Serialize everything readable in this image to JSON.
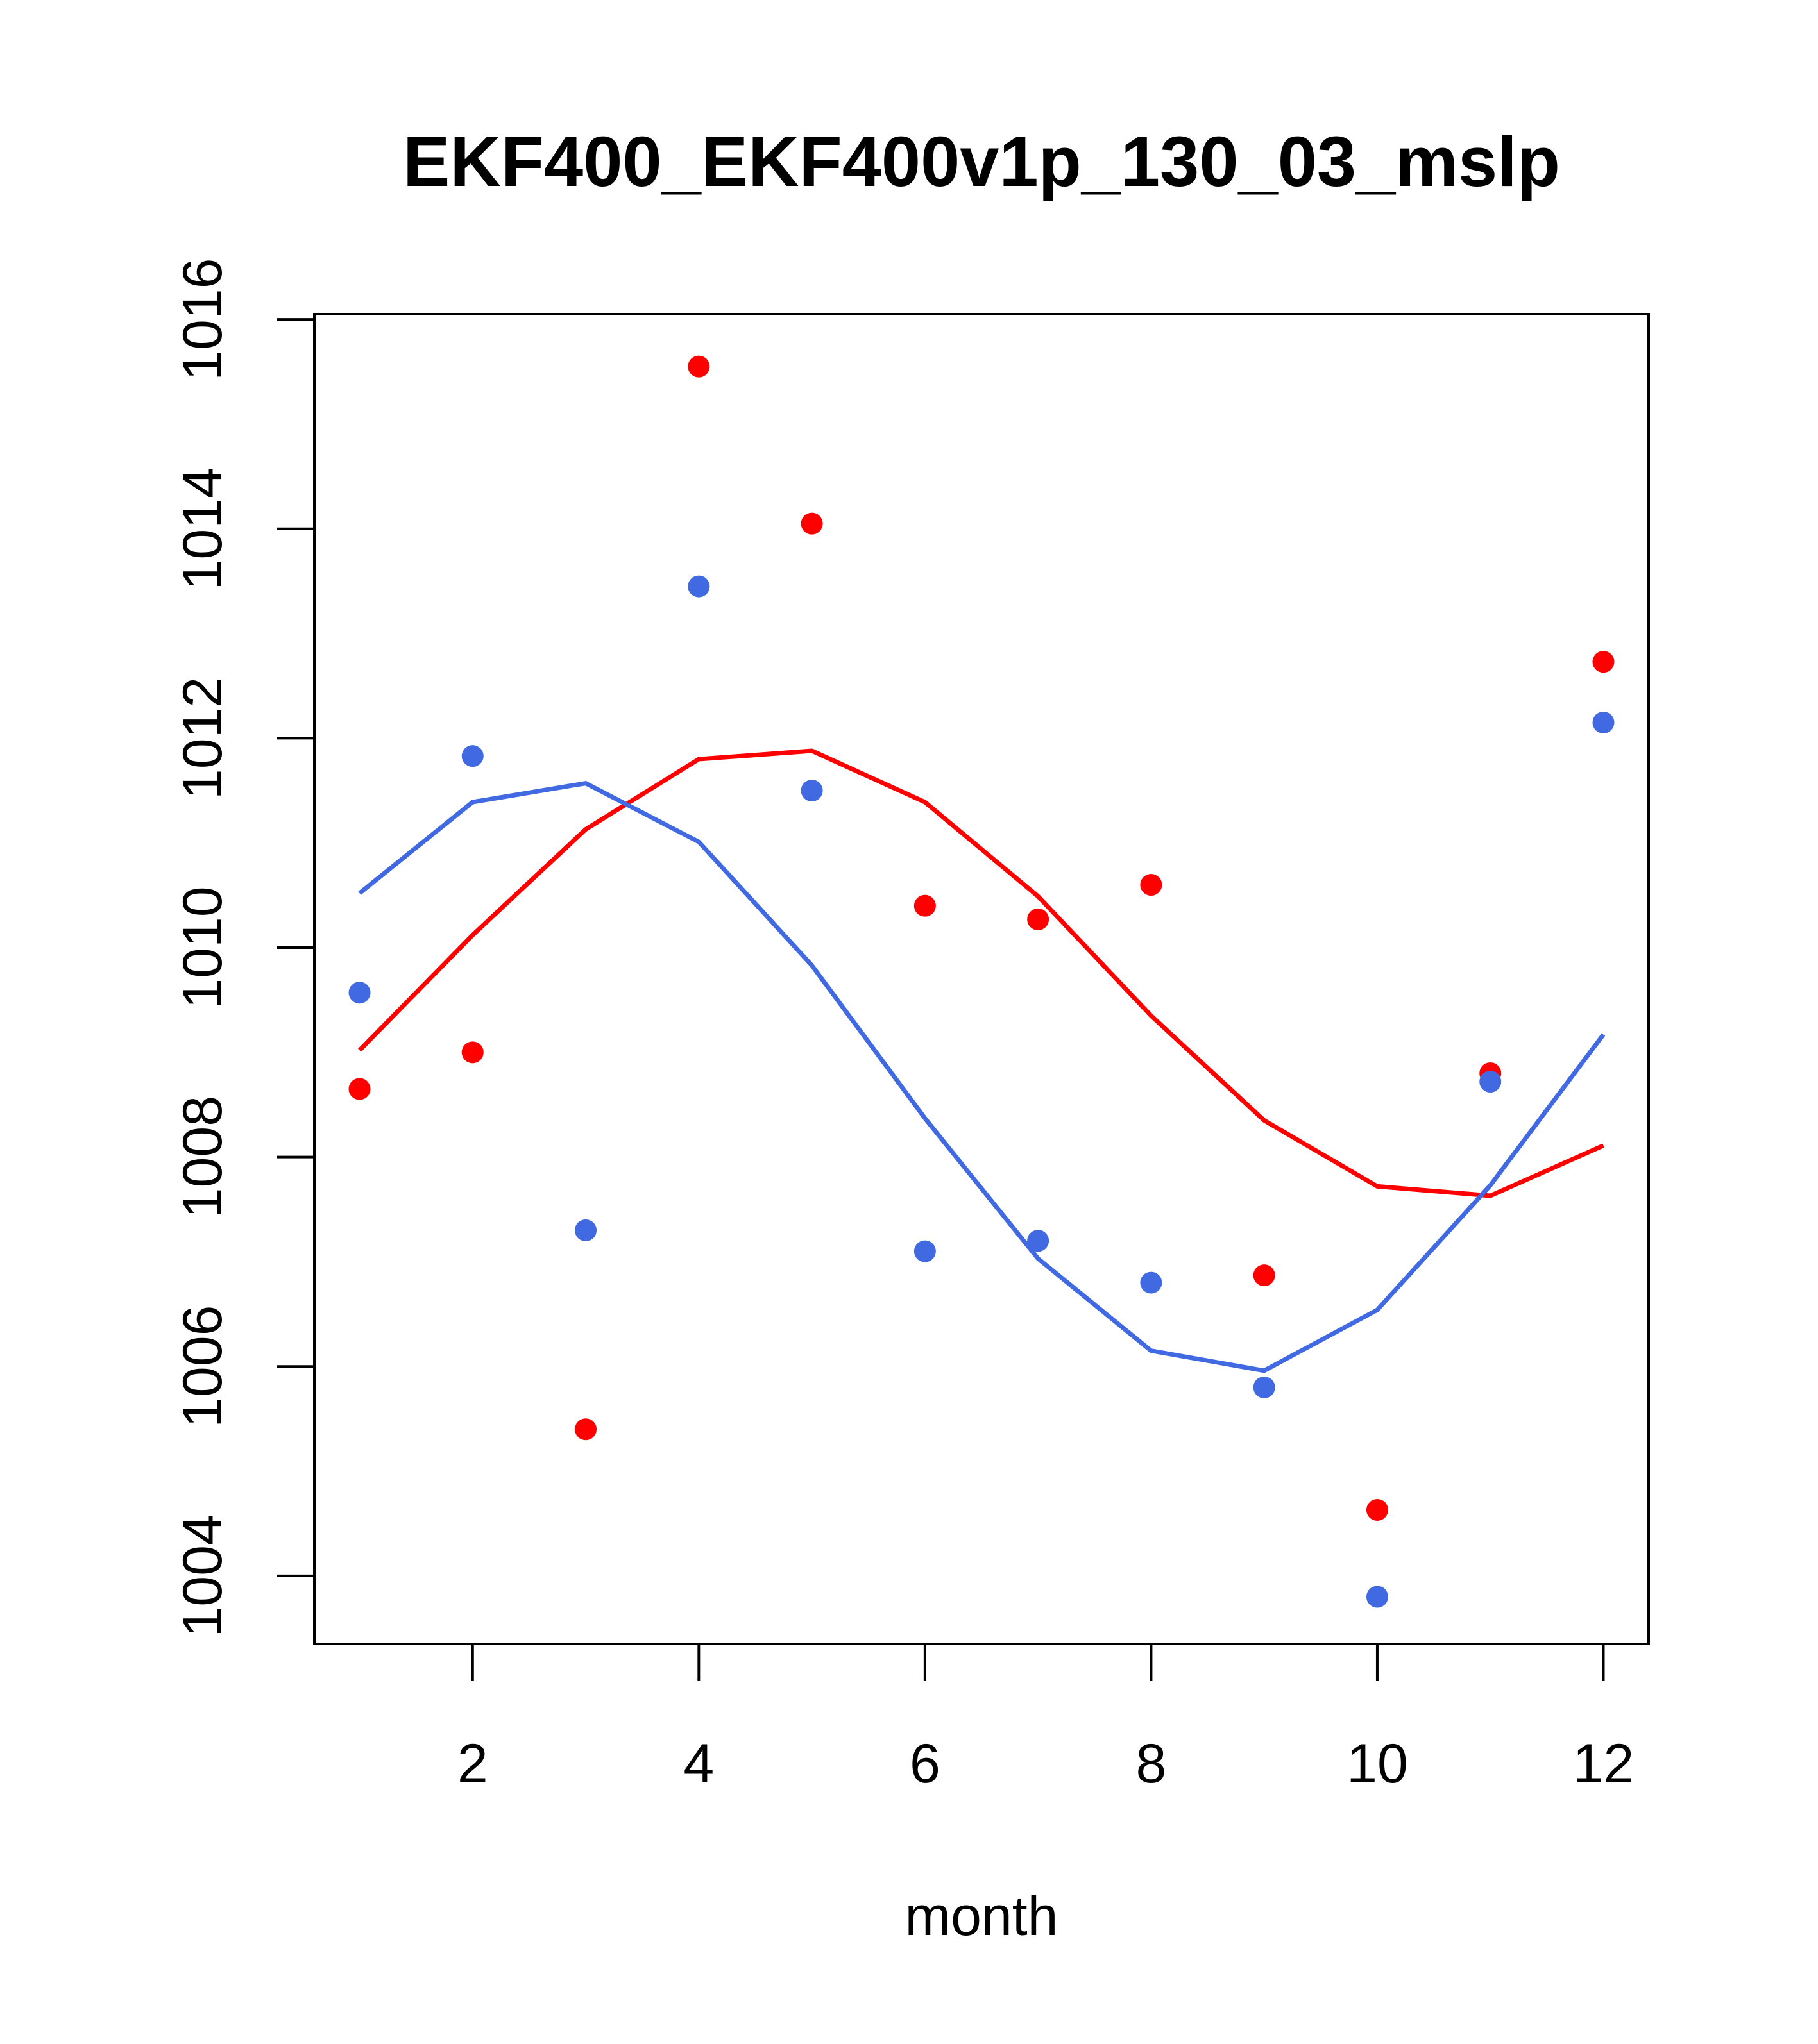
{
  "chart_data": {
    "type": "scatter",
    "title": "EKF400_EKF400v1p_130_03_mslp",
    "xlabel": "month",
    "ylabel": "",
    "xlim": [
      0.6,
      12.4
    ],
    "ylim": [
      1003.35,
      1016.05
    ],
    "x_ticks": [
      2,
      4,
      6,
      8,
      10,
      12
    ],
    "y_ticks": [
      1004,
      1006,
      1008,
      1010,
      1012,
      1014,
      1016
    ],
    "x_tick_labels": [
      "2",
      "4",
      "6",
      "8",
      "10",
      "12"
    ],
    "y_tick_labels": [
      "1004",
      "1006",
      "1008",
      "1010",
      "1012",
      "1014",
      "1016"
    ],
    "series": [
      {
        "name": "red points",
        "kind": "points",
        "color": "#ff0000",
        "x": [
          1,
          2,
          3,
          4,
          5,
          6,
          7,
          8,
          9,
          10,
          11,
          12
        ],
        "y": [
          1008.65,
          1009.0,
          1005.4,
          1015.55,
          1014.05,
          1010.4,
          1010.27,
          1010.6,
          1006.87,
          1004.63,
          1008.8,
          1012.73
        ]
      },
      {
        "name": "blue points",
        "kind": "points",
        "color": "#4169e1",
        "x": [
          1,
          2,
          3,
          4,
          5,
          6,
          7,
          8,
          9,
          10,
          11,
          12
        ],
        "y": [
          1009.57,
          1011.83,
          1007.3,
          1013.45,
          1011.5,
          1007.1,
          1007.2,
          1006.8,
          1005.8,
          1003.8,
          1008.72,
          1012.15
        ]
      },
      {
        "name": "red fit",
        "kind": "line",
        "color": "#ff0000",
        "x": [
          1,
          2,
          3,
          4,
          5,
          6,
          7,
          8,
          9,
          10,
          11,
          12
        ],
        "y": [
          1009.02,
          1010.12,
          1011.13,
          1011.8,
          1011.88,
          1011.39,
          1010.49,
          1009.35,
          1008.35,
          1007.72,
          1007.63,
          1008.11
        ]
      },
      {
        "name": "blue fit",
        "kind": "line",
        "color": "#4169e1",
        "x": [
          1,
          2,
          3,
          4,
          5,
          6,
          7,
          8,
          9,
          10,
          11,
          12
        ],
        "y": [
          1010.52,
          1011.39,
          1011.57,
          1011.01,
          1009.83,
          1008.37,
          1007.03,
          1006.15,
          1005.96,
          1006.54,
          1007.73,
          1009.17
        ]
      }
    ]
  }
}
